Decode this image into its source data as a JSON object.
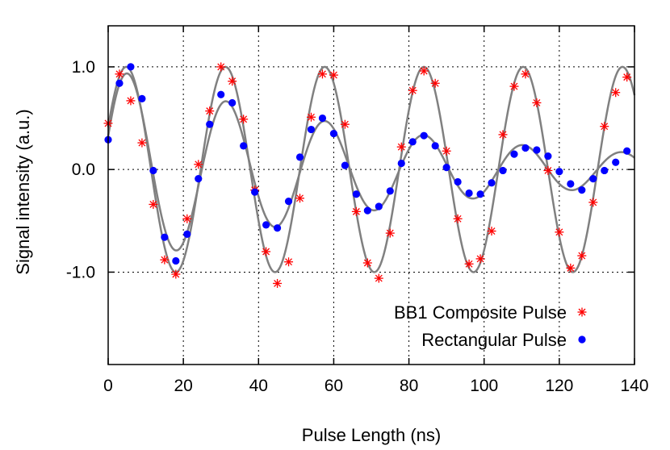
{
  "chart_data": {
    "type": "scatter",
    "title": "",
    "xlabel": "Pulse Length (ns)",
    "ylabel": "Signal intensity (a.u.)",
    "xlim": [
      0,
      140
    ],
    "ylim": [
      -1.9,
      1.4
    ],
    "xticks": [
      0,
      20,
      40,
      60,
      80,
      100,
      120,
      140
    ],
    "xtick_labels": [
      "0",
      "20",
      "40",
      "60",
      "80",
      "100",
      "120",
      "140"
    ],
    "yticks": [
      -1.0,
      0.0,
      1.0
    ],
    "ytick_labels": [
      "-1.0",
      "0.0",
      "1.0"
    ],
    "grid": true,
    "legend_position": "bottom-right",
    "series": [
      {
        "name": "BB1 Composite Pulse",
        "marker": "asterisk",
        "color": "#ff0000",
        "x": [
          0,
          3,
          6,
          9,
          12,
          15,
          18,
          21,
          24,
          27,
          30,
          33,
          36,
          39,
          42,
          45,
          48,
          51,
          54,
          57,
          60,
          63,
          66,
          69,
          72,
          75,
          78,
          81,
          84,
          87,
          90,
          93,
          96,
          99,
          102,
          105,
          108,
          111,
          114,
          117,
          120,
          123,
          126,
          129,
          132,
          135,
          138
        ],
        "y": [
          0.45,
          0.93,
          0.67,
          0.26,
          -0.34,
          -0.88,
          -1.02,
          -0.48,
          0.05,
          0.57,
          1.0,
          0.86,
          0.49,
          -0.2,
          -0.8,
          -1.11,
          -0.9,
          -0.28,
          0.51,
          0.93,
          0.92,
          0.44,
          -0.41,
          -0.91,
          -1.06,
          -0.62,
          0.22,
          0.77,
          0.96,
          0.84,
          0.18,
          -0.48,
          -0.92,
          -0.87,
          -0.6,
          0.34,
          0.81,
          0.93,
          0.65,
          -0.01,
          -0.61,
          -0.96,
          -0.84,
          -0.32,
          0.42,
          0.75,
          0.9
        ]
      },
      {
        "name": "Rectangular Pulse",
        "marker": "dot",
        "color": "#0000ff",
        "x": [
          0,
          3,
          6,
          9,
          12,
          15,
          18,
          21,
          24,
          27,
          30,
          33,
          36,
          39,
          42,
          45,
          48,
          51,
          54,
          57,
          60,
          63,
          66,
          69,
          72,
          75,
          78,
          81,
          84,
          87,
          90,
          93,
          96,
          99,
          102,
          105,
          108,
          111,
          114,
          117,
          120,
          123,
          126,
          129,
          132,
          135,
          138
        ],
        "y": [
          0.29,
          0.84,
          1.0,
          0.69,
          -0.01,
          -0.66,
          -0.89,
          -0.63,
          -0.09,
          0.44,
          0.73,
          0.65,
          0.23,
          -0.22,
          -0.54,
          -0.57,
          -0.31,
          0.12,
          0.39,
          0.5,
          0.35,
          0.04,
          -0.24,
          -0.4,
          -0.36,
          -0.21,
          0.06,
          0.27,
          0.33,
          0.23,
          0.02,
          -0.12,
          -0.23,
          -0.24,
          -0.13,
          -0.01,
          0.15,
          0.21,
          0.19,
          0.13,
          -0.02,
          -0.14,
          -0.2,
          -0.09,
          -0.01,
          0.07,
          0.18
        ]
      }
    ],
    "fits": [
      {
        "amplitude": 1.0,
        "period": 26.4,
        "phase_x": 4.8,
        "decay": 0.0,
        "offset": 0.0,
        "color": "#808080"
      },
      {
        "amplitude": 1.0,
        "period": 26.3,
        "phase_x": 5.2,
        "decay": 0.013,
        "offset": 0.0,
        "color": "#808080"
      }
    ]
  }
}
